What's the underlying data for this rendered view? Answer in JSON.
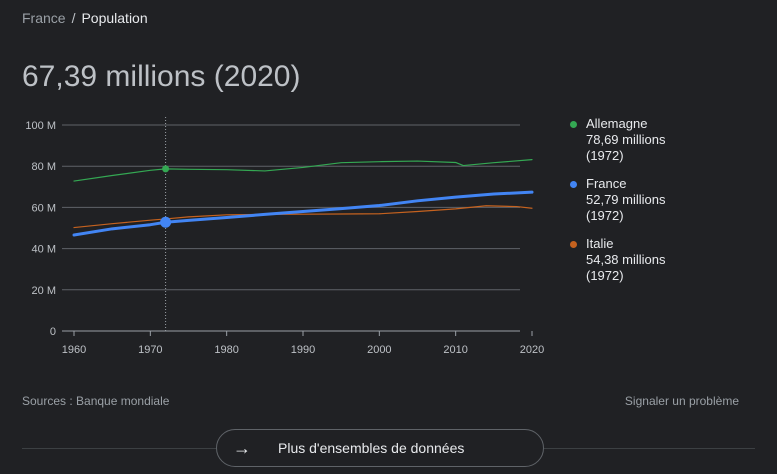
{
  "breadcrumb": {
    "parent": "France",
    "separator": "/",
    "current": "Population"
  },
  "headline": "67,39 millions (2020)",
  "colors": {
    "Allemagne": "#34a853",
    "France": "#4285f4",
    "Italie": "#c5621f"
  },
  "legend": [
    {
      "name": "Allemagne",
      "value": "78,69 millions",
      "year": "(1972)"
    },
    {
      "name": "France",
      "value": "52,79 millions",
      "year": "(1972)"
    },
    {
      "name": "Italie",
      "value": "54,38 millions",
      "year": "(1972)"
    }
  ],
  "chart_data": {
    "type": "line",
    "xlim": [
      1960,
      2020
    ],
    "ylim": [
      0,
      100
    ],
    "y_ticks": [
      0,
      20,
      40,
      60,
      80,
      100
    ],
    "y_tick_labels": [
      "0",
      "20 M",
      "40 M",
      "60 M",
      "80 M",
      "100 M"
    ],
    "x_ticks": [
      1960,
      1970,
      1980,
      1990,
      2000,
      2010,
      2020
    ],
    "x_tick_labels": [
      "1960",
      "1970",
      "1980",
      "1990",
      "2000",
      "2010",
      "2020"
    ],
    "highlight_x": 1972,
    "grid": true,
    "legend_position": "right",
    "series": [
      {
        "name": "Allemagne",
        "x": [
          1960,
          1965,
          1970,
          1972,
          1975,
          1980,
          1985,
          1990,
          1995,
          2000,
          2005,
          2010,
          2011,
          2015,
          2020
        ],
        "y": [
          72.8,
          75.5,
          78.0,
          78.7,
          78.5,
          78.3,
          77.7,
          79.4,
          81.7,
          82.2,
          82.5,
          81.8,
          80.3,
          81.7,
          83.2
        ]
      },
      {
        "name": "France",
        "x": [
          1960,
          1965,
          1970,
          1972,
          1975,
          1980,
          1985,
          1990,
          1995,
          2000,
          2005,
          2010,
          2015,
          2020
        ],
        "y": [
          46.6,
          49.6,
          51.6,
          52.8,
          53.7,
          55.1,
          56.6,
          58.0,
          59.4,
          60.9,
          63.2,
          65.0,
          66.5,
          67.4
        ]
      },
      {
        "name": "Italie",
        "x": [
          1960,
          1965,
          1970,
          1972,
          1975,
          1980,
          1985,
          1990,
          1995,
          2000,
          2005,
          2010,
          2014,
          2018,
          2020
        ],
        "y": [
          50.2,
          52.1,
          53.8,
          54.4,
          55.4,
          56.4,
          56.6,
          56.7,
          56.8,
          56.9,
          58.0,
          59.3,
          60.8,
          60.4,
          59.6
        ]
      }
    ]
  },
  "footer": {
    "sources": "Sources : Banque mondiale",
    "report": "Signaler un problème",
    "more_button_icon": "arrow-right-icon",
    "more_button_label": "Plus d'ensembles de données"
  }
}
